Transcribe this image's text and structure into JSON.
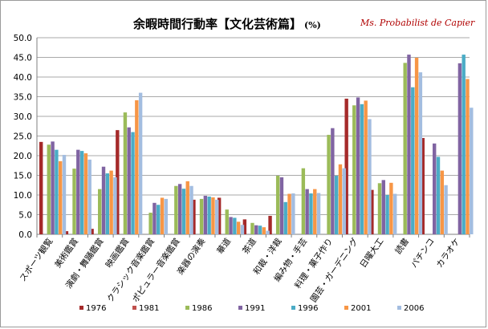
{
  "chart_data": {
    "type": "bar",
    "title": "余暇時間行動率【文化芸術篇】",
    "title_unit": "(%)",
    "watermark": "Ms. Probabilist de Capier",
    "xlabel": "",
    "ylabel": "",
    "ylim": [
      0,
      50
    ],
    "y_tick_step": 5,
    "y_tick_labels": [
      "0.0",
      "5.0",
      "10.0",
      "15.0",
      "20.0",
      "25.0",
      "30.0",
      "35.0",
      "40.0",
      "45.0",
      "50.0"
    ],
    "grid": true,
    "legend_position": "bottom",
    "categories": [
      "スポーツ観覧",
      "美術鑑賞",
      "演劇・舞踊鑑賞",
      "映画鑑賞",
      "クラシック音楽鑑賞",
      "ポピュラー音楽鑑賞",
      "楽器の演奏",
      "華道",
      "茶道",
      "和裁・洋裁",
      "編み物・手芸",
      "料理・菓子作り",
      "園芸・ガーデニング",
      "日曜大工",
      "読書",
      "パチンコ",
      "カラオケ"
    ],
    "series": [
      {
        "name": "1976",
        "color": "#a52a2a",
        "values": [
          23.5,
          0.8,
          1.4,
          26.5,
          null,
          null,
          8.8,
          9.3,
          3.8,
          4.7,
          null,
          null,
          34.5,
          11.3,
          null,
          24.5,
          null
        ]
      },
      {
        "name": "1981",
        "color": "#c0504d",
        "values": [
          null,
          null,
          null,
          null,
          null,
          null,
          null,
          null,
          null,
          null,
          null,
          null,
          null,
          null,
          null,
          null,
          null
        ]
      },
      {
        "name": "1986",
        "color": "#9bbb59",
        "values": [
          22.8,
          16.7,
          11.5,
          31.0,
          5.5,
          12.3,
          9.0,
          6.3,
          2.9,
          14.9,
          16.8,
          25.3,
          32.8,
          13.0,
          43.6,
          null,
          null
        ]
      },
      {
        "name": "1991",
        "color": "#8064a2",
        "values": [
          23.6,
          21.5,
          17.2,
          27.2,
          8.0,
          12.8,
          9.8,
          4.4,
          2.3,
          14.5,
          11.5,
          27.0,
          34.8,
          13.8,
          45.7,
          23.1,
          43.5
        ]
      },
      {
        "name": "1996",
        "color": "#4bacc6",
        "values": [
          21.5,
          21.2,
          15.5,
          26.0,
          7.5,
          11.6,
          9.6,
          4.2,
          2.2,
          8.2,
          10.4,
          14.9,
          33.1,
          10.0,
          37.4,
          19.7,
          45.7
        ]
      },
      {
        "name": "2001",
        "color": "#f79646",
        "values": [
          18.6,
          20.6,
          16.2,
          34.1,
          9.3,
          13.5,
          9.4,
          3.2,
          1.8,
          10.3,
          11.5,
          17.8,
          34.0,
          13.1,
          44.9,
          16.2,
          39.5
        ]
      },
      {
        "name": "2006",
        "color": "#a3bde0",
        "values": [
          20.2,
          19.0,
          14.5,
          36.0,
          9.0,
          12.3,
          8.8,
          2.4,
          0.9,
          10.4,
          10.5,
          16.8,
          29.3,
          10.3,
          41.2,
          12.5,
          32.2
        ]
      }
    ]
  }
}
